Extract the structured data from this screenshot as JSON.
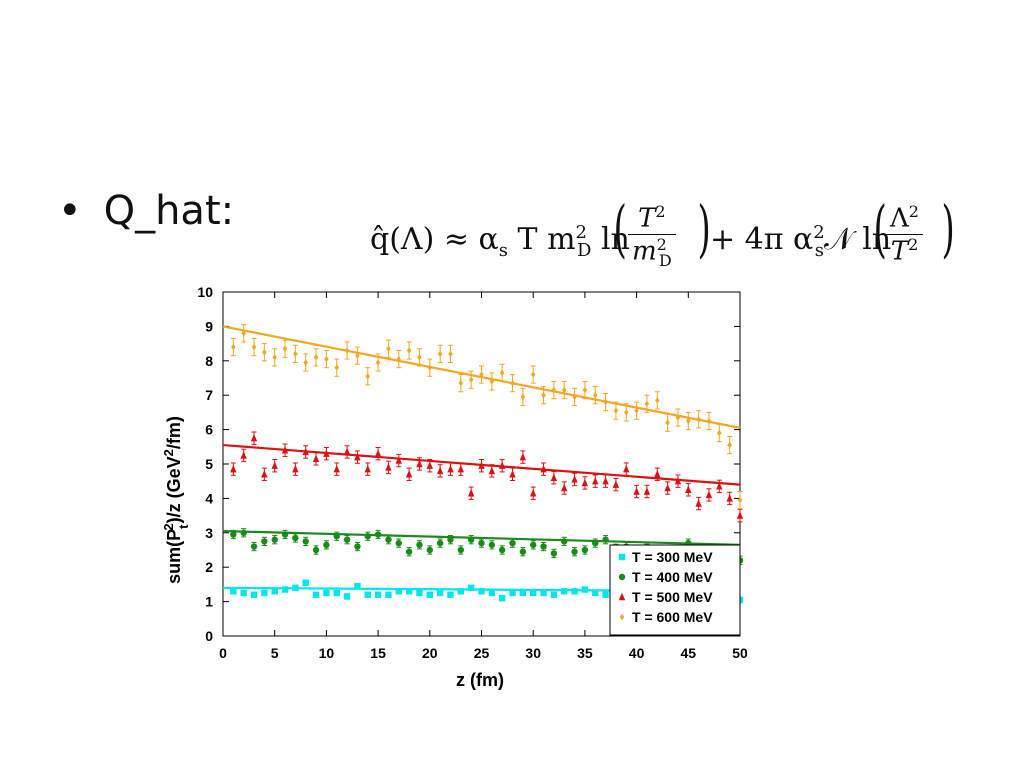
{
  "slide": {
    "bullet_glyph": "•",
    "bullet_text": "Q_hat:",
    "formula": {
      "lhs": "q̂(Λ) ≈ α",
      "lhs_sub": "s",
      "t_term": " T m",
      "m_sup": "2",
      "m_sub": "D",
      "ln1": " ln",
      "frac1_num": "T",
      "frac1_num_sup": "2",
      "frac1_den": "m",
      "frac1_den_sup": "2",
      "frac1_den_sub": "D",
      "plus_term": "+ 4π α",
      "alpha_sup": "2",
      "alpha_sub": "s",
      "n_term": "𝒩 ln",
      "frac2_num": "Λ",
      "frac2_num_sup": "2",
      "frac2_den": "T",
      "frac2_den_sup": "2"
    }
  },
  "chart_data": {
    "type": "scatter",
    "title": "",
    "xlabel": "z (fm)",
    "ylabel": "sum(P",
    "ylabel_sub": "t",
    "ylabel_sup": "2",
    "ylabel_mid": ")/z (GeV",
    "ylabel_sup2": "2",
    "ylabel_end": "/fm)",
    "xlim": [
      0,
      50
    ],
    "ylim": [
      0,
      10
    ],
    "xticks": [
      0,
      5,
      10,
      15,
      20,
      25,
      30,
      35,
      40,
      45,
      50
    ],
    "yticks": [
      0,
      1,
      2,
      3,
      4,
      5,
      6,
      7,
      8,
      9,
      10
    ],
    "grid": false,
    "legend_position": "bottom-right",
    "series": [
      {
        "name": "T = 300 MeV",
        "color": "#00e5ee",
        "marker": "square",
        "fit": [
          1.4,
          1.3
        ],
        "x": [
          1,
          2,
          3,
          4,
          5,
          6,
          7,
          8,
          9,
          10,
          11,
          12,
          13,
          14,
          15,
          16,
          17,
          18,
          19,
          20,
          21,
          22,
          23,
          24,
          25,
          26,
          27,
          28,
          29,
          30,
          31,
          32,
          33,
          34,
          35,
          36,
          37,
          38,
          39,
          40,
          41,
          42,
          43,
          44,
          45,
          46,
          47,
          48,
          49,
          50
        ],
        "y": [
          1.3,
          1.25,
          1.2,
          1.25,
          1.3,
          1.35,
          1.4,
          1.55,
          1.2,
          1.25,
          1.25,
          1.15,
          1.45,
          1.2,
          1.2,
          1.2,
          1.3,
          1.3,
          1.25,
          1.2,
          1.25,
          1.2,
          1.3,
          1.4,
          1.3,
          1.25,
          1.1,
          1.25,
          1.25,
          1.25,
          1.25,
          1.2,
          1.3,
          1.3,
          1.35,
          1.25,
          1.2,
          1.25,
          1.3,
          1.2,
          1.25,
          1.2,
          1.25,
          1.25,
          1.2,
          1.2,
          1.25,
          1.15,
          1.2,
          1.05
        ],
        "err": [
          0.06,
          0.06,
          0.06,
          0.06,
          0.06,
          0.06,
          0.06,
          0.06,
          0.06,
          0.06,
          0.06,
          0.06,
          0.06,
          0.06,
          0.06,
          0.06,
          0.06,
          0.06,
          0.06,
          0.06,
          0.06,
          0.06,
          0.06,
          0.06,
          0.06,
          0.06,
          0.06,
          0.06,
          0.06,
          0.06,
          0.06,
          0.06,
          0.06,
          0.06,
          0.06,
          0.06,
          0.06,
          0.06,
          0.06,
          0.06,
          0.06,
          0.06,
          0.06,
          0.06,
          0.06,
          0.06,
          0.06,
          0.06,
          0.06,
          0.06
        ]
      },
      {
        "name": "T = 400 MeV",
        "color": "#1a8a1a",
        "marker": "circle",
        "fit": [
          3.05,
          2.65
        ],
        "x": [
          1,
          2,
          3,
          4,
          5,
          6,
          7,
          8,
          9,
          10,
          11,
          12,
          13,
          14,
          15,
          16,
          17,
          18,
          19,
          20,
          21,
          22,
          23,
          24,
          25,
          26,
          27,
          28,
          29,
          30,
          31,
          32,
          33,
          34,
          35,
          36,
          37,
          38,
          39,
          40,
          41,
          42,
          43,
          44,
          45,
          46,
          47,
          48,
          49,
          50
        ],
        "y": [
          2.95,
          3.0,
          2.6,
          2.75,
          2.8,
          2.95,
          2.85,
          2.75,
          2.5,
          2.65,
          2.9,
          2.8,
          2.6,
          2.9,
          2.95,
          2.8,
          2.7,
          2.45,
          2.65,
          2.5,
          2.7,
          2.8,
          2.5,
          2.8,
          2.7,
          2.65,
          2.5,
          2.7,
          2.45,
          2.65,
          2.6,
          2.4,
          2.75,
          2.45,
          2.5,
          2.7,
          2.8,
          2.55,
          2.6,
          2.5,
          2.55,
          2.45,
          2.5,
          2.5,
          2.7,
          2.4,
          2.5,
          2.35,
          2.4,
          2.2
        ],
        "err": [
          0.12,
          0.12,
          0.12,
          0.12,
          0.12,
          0.12,
          0.12,
          0.12,
          0.12,
          0.12,
          0.12,
          0.12,
          0.12,
          0.12,
          0.12,
          0.12,
          0.12,
          0.12,
          0.12,
          0.12,
          0.12,
          0.12,
          0.12,
          0.12,
          0.12,
          0.12,
          0.12,
          0.12,
          0.12,
          0.12,
          0.12,
          0.12,
          0.12,
          0.12,
          0.12,
          0.12,
          0.12,
          0.12,
          0.12,
          0.12,
          0.12,
          0.12,
          0.12,
          0.12,
          0.12,
          0.12,
          0.12,
          0.12,
          0.12,
          0.12
        ]
      },
      {
        "name": "T = 500 MeV",
        "color": "#dd1111",
        "marker": "triangle",
        "fit": [
          5.55,
          4.4
        ],
        "x": [
          1,
          2,
          3,
          4,
          5,
          6,
          7,
          8,
          9,
          10,
          11,
          12,
          13,
          14,
          15,
          16,
          17,
          18,
          19,
          20,
          21,
          22,
          23,
          24,
          25,
          26,
          27,
          28,
          29,
          30,
          31,
          32,
          33,
          34,
          35,
          36,
          37,
          38,
          39,
          40,
          41,
          42,
          43,
          44,
          45,
          46,
          47,
          48,
          49,
          50
        ],
        "y": [
          4.85,
          5.25,
          5.75,
          4.7,
          4.95,
          5.4,
          4.85,
          5.35,
          5.15,
          5.3,
          4.85,
          5.35,
          5.2,
          4.85,
          5.3,
          4.9,
          5.1,
          4.7,
          5.0,
          4.95,
          4.8,
          4.85,
          4.85,
          4.15,
          4.95,
          4.8,
          4.95,
          4.7,
          5.2,
          4.15,
          4.85,
          4.6,
          4.3,
          4.55,
          4.45,
          4.5,
          4.5,
          4.4,
          4.85,
          4.2,
          4.2,
          4.7,
          4.3,
          4.5,
          4.25,
          3.85,
          4.1,
          4.35,
          4.0,
          3.5
        ],
        "err": [
          0.18,
          0.18,
          0.18,
          0.18,
          0.18,
          0.18,
          0.18,
          0.18,
          0.18,
          0.18,
          0.18,
          0.18,
          0.18,
          0.18,
          0.18,
          0.18,
          0.18,
          0.18,
          0.18,
          0.18,
          0.18,
          0.18,
          0.18,
          0.18,
          0.18,
          0.18,
          0.18,
          0.18,
          0.18,
          0.18,
          0.18,
          0.18,
          0.18,
          0.18,
          0.18,
          0.18,
          0.18,
          0.18,
          0.18,
          0.18,
          0.18,
          0.18,
          0.18,
          0.18,
          0.18,
          0.18,
          0.18,
          0.18,
          0.18,
          0.18
        ]
      },
      {
        "name": "T = 600 MeV",
        "color": "#f5a623",
        "marker": "diamond",
        "fit": [
          9.0,
          6.05
        ],
        "x": [
          1,
          2,
          3,
          4,
          5,
          6,
          7,
          8,
          9,
          10,
          11,
          12,
          13,
          14,
          15,
          16,
          17,
          18,
          19,
          20,
          21,
          22,
          23,
          24,
          25,
          26,
          27,
          28,
          29,
          30,
          31,
          32,
          33,
          34,
          35,
          36,
          37,
          38,
          39,
          40,
          41,
          42,
          43,
          44,
          45,
          46,
          47,
          48,
          49,
          50
        ],
        "y": [
          8.4,
          8.8,
          8.4,
          8.25,
          8.1,
          8.35,
          8.2,
          7.95,
          8.1,
          8.05,
          7.8,
          8.3,
          8.15,
          7.55,
          7.95,
          8.35,
          8.05,
          8.3,
          8.1,
          7.8,
          8.2,
          8.2,
          7.35,
          7.45,
          7.6,
          7.4,
          7.65,
          7.35,
          6.95,
          7.6,
          7.0,
          7.15,
          7.15,
          6.95,
          7.15,
          7.0,
          6.8,
          6.55,
          6.5,
          6.55,
          6.75,
          6.85,
          6.2,
          6.35,
          6.25,
          6.3,
          6.25,
          5.9,
          5.55,
          3.95
        ],
        "err": [
          0.25,
          0.25,
          0.25,
          0.25,
          0.25,
          0.25,
          0.25,
          0.25,
          0.25,
          0.25,
          0.25,
          0.25,
          0.25,
          0.25,
          0.25,
          0.25,
          0.25,
          0.25,
          0.25,
          0.25,
          0.25,
          0.25,
          0.25,
          0.25,
          0.25,
          0.25,
          0.25,
          0.25,
          0.25,
          0.25,
          0.25,
          0.25,
          0.25,
          0.25,
          0.25,
          0.25,
          0.25,
          0.25,
          0.25,
          0.25,
          0.25,
          0.25,
          0.25,
          0.25,
          0.25,
          0.25,
          0.25,
          0.25,
          0.25,
          0.25
        ]
      }
    ]
  }
}
